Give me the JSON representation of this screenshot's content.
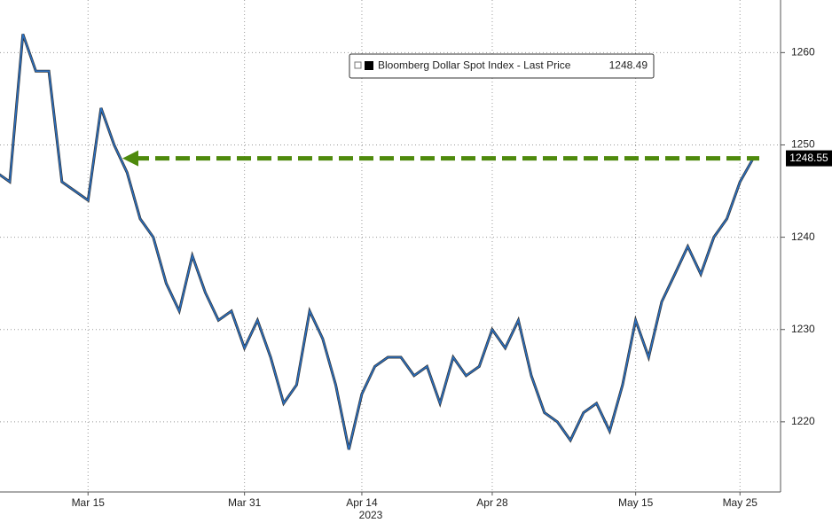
{
  "chart_data": {
    "type": "line",
    "x_year_label": "2023",
    "categories": [
      null,
      null,
      null,
      null,
      null,
      null,
      null,
      "Mar 15",
      null,
      null,
      null,
      null,
      null,
      null,
      null,
      null,
      null,
      null,
      null,
      "Mar 31",
      null,
      null,
      null,
      null,
      null,
      null,
      null,
      null,
      "Apr 14",
      null,
      null,
      null,
      null,
      null,
      null,
      null,
      null,
      null,
      "Apr 28",
      null,
      null,
      null,
      null,
      null,
      null,
      null,
      null,
      null,
      null,
      "May 15",
      null,
      null,
      null,
      null,
      null,
      null,
      null,
      "May 25",
      null
    ],
    "series": [
      {
        "name": "Bloomberg Dollar Spot Index - Last Price",
        "color": "#2a6fc0",
        "values": [
          1247,
          1246,
          1262,
          1258,
          1258,
          1246,
          1245,
          1244,
          1254,
          1250,
          1247,
          1242,
          1240,
          1235,
          1232,
          1238,
          1234,
          1231,
          1232,
          1228,
          1231,
          1227,
          1222,
          1224,
          1232,
          1229,
          1224,
          1217,
          1223,
          1226,
          1227,
          1227,
          1225,
          1226,
          1222,
          1227,
          1225,
          1226,
          1230,
          1228,
          1231,
          1225,
          1221,
          1220,
          1218,
          1221,
          1222,
          1219,
          1224,
          1231,
          1227,
          1233,
          1236,
          1239,
          1236,
          1240,
          1242,
          1246,
          1248.49
        ]
      }
    ],
    "legend_value": 1248.49,
    "last_price": 1248.55,
    "arrow_color": "#4e8a0c",
    "ylim": [
      1212.4,
      1265.7
    ],
    "yticks": [
      1220,
      1230,
      1240,
      1250,
      1260
    ],
    "grid": true
  }
}
